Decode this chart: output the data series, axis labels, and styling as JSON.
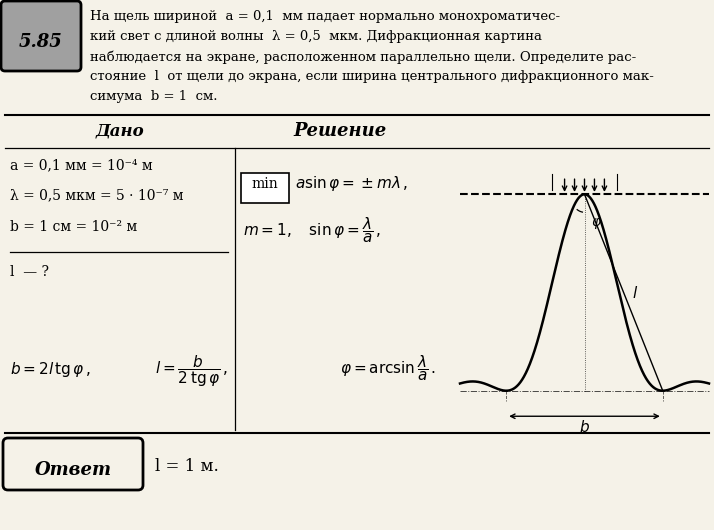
{
  "bg_color": "#f5f2e8",
  "title_num": "5.85",
  "problem_line1": "На щель шириной  a = 0,1  мм падает нормально монохроматичес-",
  "problem_line2": "кий свет с длиной волны  λ = 0,5  мкм. Дифракционная картина",
  "problem_line3": "наблюдается на экране, расположенном параллельно щели. Определите рас-",
  "problem_line4": "стояние  l  от щели до экрана, если ширина центрального дифракционного мак-",
  "problem_line5": "симума  b = 1  см.",
  "dado_title": "Дано",
  "reshenie_title": "Решение",
  "dado_line1": "a = 0,1 мм = 10⁻⁴ м",
  "dado_line2": "λ = 0,5 мкм = 5 · 10⁻⁷ м",
  "dado_line3": "b = 1 см = 10⁻² м",
  "dado_line4": "l  — ?",
  "answer_label": "Ответ",
  "answer_text": "l = 1 м."
}
